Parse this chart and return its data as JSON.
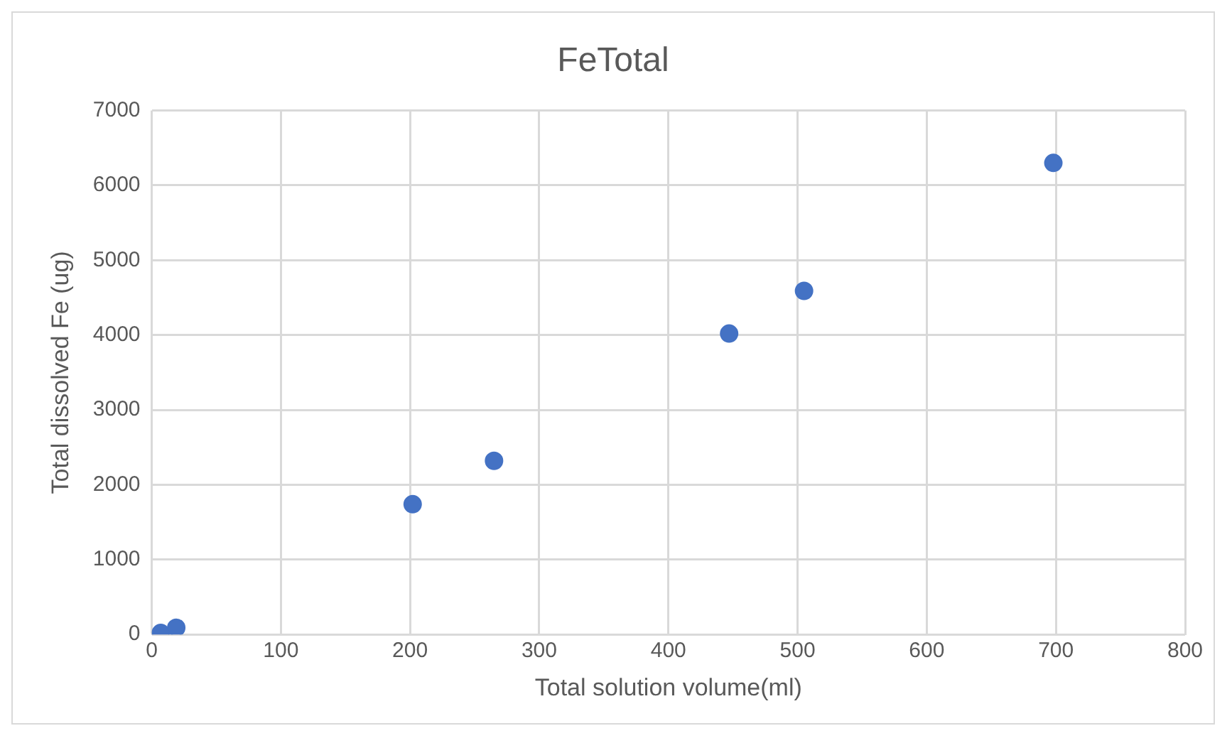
{
  "chart_data": {
    "type": "scatter",
    "title": "FeTotal",
    "xlabel": "Total solution volume(ml)",
    "ylabel": "Total dissolved Fe (ug)",
    "x": [
      7,
      19,
      202,
      265,
      447,
      505,
      698
    ],
    "series": [
      {
        "color": "#4472c4",
        "values": [
          20,
          90,
          1740,
          2320,
          4020,
          4590,
          6300
        ]
      }
    ],
    "xlim": [
      0,
      800
    ],
    "xticks": [
      0,
      100,
      200,
      300,
      400,
      500,
      600,
      700,
      800
    ],
    "ylim": [
      0,
      7000
    ],
    "yticks": [
      0,
      1000,
      2000,
      3000,
      4000,
      5000,
      6000,
      7000
    ],
    "grid": true,
    "marker": "circle",
    "legend": false
  }
}
